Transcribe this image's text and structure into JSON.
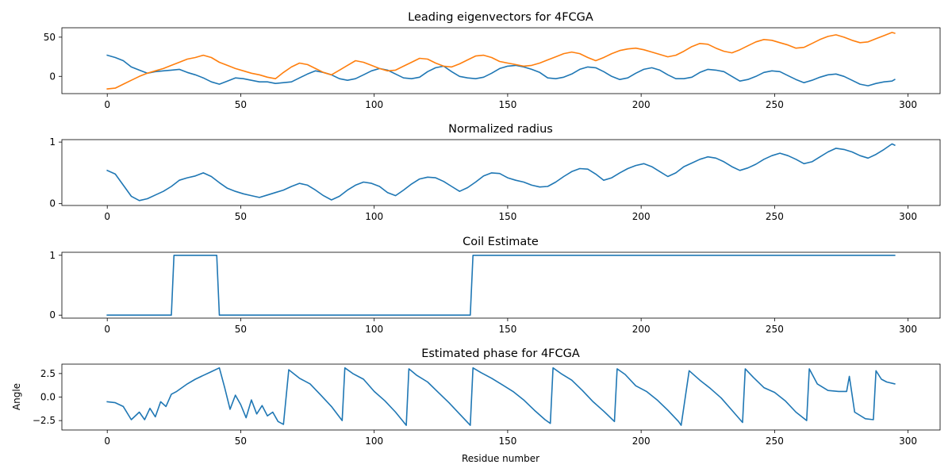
{
  "chart_data": [
    {
      "type": "line",
      "title": "Leading eigenvectors for 4FCGA",
      "xlabel": "",
      "ylabel": "",
      "xlim": [
        -17,
        312
      ],
      "ylim": [
        -22,
        62
      ],
      "xticks": [
        0,
        50,
        100,
        150,
        200,
        250,
        300
      ],
      "xtick_labels": [
        "0",
        "50",
        "100",
        "150",
        "200",
        "250",
        "300"
      ],
      "yticks": [
        0,
        50
      ],
      "ytick_labels": [
        "0",
        "50"
      ],
      "grid": false,
      "series": [
        {
          "color": "#1f77b4",
          "x": [
            0,
            3,
            6,
            9,
            12,
            15,
            18,
            21,
            24,
            27,
            30,
            33,
            36,
            39,
            42,
            45,
            48,
            51,
            54,
            57,
            60,
            63,
            66,
            69,
            72,
            75,
            78,
            81,
            84,
            87,
            90,
            93,
            96,
            99,
            102,
            105,
            108,
            111,
            114,
            117,
            120,
            123,
            126,
            129,
            132,
            135,
            138,
            141,
            144,
            147,
            150,
            153,
            156,
            159,
            162,
            165,
            168,
            171,
            174,
            177,
            180,
            183,
            186,
            189,
            192,
            195,
            198,
            201,
            204,
            207,
            210,
            213,
            216,
            219,
            222,
            225,
            228,
            231,
            234,
            237,
            240,
            243,
            246,
            249,
            252,
            255,
            258,
            261,
            264,
            267,
            270,
            273,
            276,
            279,
            282,
            285,
            288,
            291,
            294,
            295
          ],
          "y": [
            27,
            24,
            20,
            12,
            8,
            4,
            6,
            7,
            8,
            9,
            5,
            2,
            -2,
            -7,
            -10,
            -6,
            -2,
            -3,
            -5,
            -7,
            -7,
            -9,
            -8,
            -7,
            -2,
            3,
            7,
            5,
            2,
            -3,
            -5,
            -3,
            2,
            7,
            10,
            8,
            3,
            -2,
            -3,
            -1,
            6,
            11,
            13,
            6,
            0,
            -2,
            -3,
            -1,
            4,
            10,
            13,
            14,
            12,
            9,
            5,
            -2,
            -3,
            -1,
            3,
            9,
            12,
            11,
            6,
            0,
            -4,
            -2,
            4,
            9,
            11,
            8,
            2,
            -3,
            -3,
            -1,
            5,
            9,
            8,
            6,
            0,
            -6,
            -4,
            0,
            5,
            7,
            6,
            1,
            -4,
            -8,
            -5,
            -1,
            2,
            3,
            0,
            -5,
            -10,
            -12,
            -9,
            -7,
            -6,
            -4
          ]
        },
        {
          "color": "#ff7f0e",
          "x": [
            0,
            3,
            6,
            9,
            12,
            15,
            18,
            21,
            24,
            27,
            30,
            33,
            36,
            39,
            42,
            45,
            48,
            51,
            54,
            57,
            60,
            63,
            66,
            69,
            72,
            75,
            78,
            81,
            84,
            87,
            90,
            93,
            96,
            99,
            102,
            105,
            108,
            111,
            114,
            117,
            120,
            123,
            126,
            129,
            132,
            135,
            138,
            141,
            144,
            147,
            150,
            153,
            156,
            159,
            162,
            165,
            168,
            171,
            174,
            177,
            180,
            183,
            186,
            189,
            192,
            195,
            198,
            201,
            204,
            207,
            210,
            213,
            216,
            219,
            222,
            225,
            228,
            231,
            234,
            237,
            240,
            243,
            246,
            249,
            252,
            255,
            258,
            261,
            264,
            267,
            270,
            273,
            276,
            279,
            282,
            285,
            288,
            291,
            294,
            295
          ],
          "y": [
            -16,
            -15,
            -10,
            -5,
            0,
            4,
            7,
            10,
            14,
            18,
            22,
            24,
            27,
            24,
            18,
            14,
            10,
            7,
            4,
            2,
            -1,
            -3,
            5,
            12,
            17,
            15,
            10,
            5,
            2,
            8,
            14,
            20,
            18,
            14,
            10,
            7,
            8,
            13,
            18,
            23,
            22,
            17,
            13,
            12,
            16,
            21,
            26,
            27,
            24,
            19,
            17,
            15,
            13,
            14,
            17,
            21,
            25,
            29,
            31,
            29,
            24,
            20,
            24,
            29,
            33,
            35,
            36,
            34,
            31,
            28,
            25,
            27,
            32,
            38,
            42,
            41,
            36,
            32,
            30,
            34,
            39,
            44,
            47,
            46,
            43,
            40,
            36,
            37,
            42,
            47,
            51,
            53,
            50,
            46,
            43,
            44,
            48,
            52,
            56,
            55
          ]
        }
      ]
    },
    {
      "type": "line",
      "title": "Normalized radius",
      "xlabel": "",
      "ylabel": "",
      "xlim": [
        -17,
        312
      ],
      "ylim": [
        -0.03,
        1.04
      ],
      "xticks": [
        0,
        50,
        100,
        150,
        200,
        250,
        300
      ],
      "xtick_labels": [
        "0",
        "50",
        "100",
        "150",
        "200",
        "250",
        "300"
      ],
      "yticks": [
        0,
        1
      ],
      "ytick_labels": [
        "0",
        "1"
      ],
      "grid": false,
      "series": [
        {
          "color": "#1f77b4",
          "x": [
            0,
            3,
            6,
            9,
            12,
            15,
            18,
            21,
            24,
            27,
            30,
            33,
            36,
            39,
            42,
            45,
            48,
            51,
            54,
            57,
            60,
            63,
            66,
            69,
            72,
            75,
            78,
            81,
            84,
            87,
            90,
            93,
            96,
            99,
            102,
            105,
            108,
            111,
            114,
            117,
            120,
            123,
            126,
            129,
            132,
            135,
            138,
            141,
            144,
            147,
            150,
            153,
            156,
            159,
            162,
            165,
            168,
            171,
            174,
            177,
            180,
            183,
            186,
            189,
            192,
            195,
            198,
            201,
            204,
            207,
            210,
            213,
            216,
            219,
            222,
            225,
            228,
            231,
            234,
            237,
            240,
            243,
            246,
            249,
            252,
            255,
            258,
            261,
            264,
            267,
            270,
            273,
            276,
            279,
            282,
            285,
            288,
            291,
            294,
            295
          ],
          "y": [
            0.54,
            0.48,
            0.3,
            0.12,
            0.05,
            0.08,
            0.14,
            0.2,
            0.28,
            0.38,
            0.42,
            0.45,
            0.5,
            0.44,
            0.34,
            0.25,
            0.2,
            0.16,
            0.13,
            0.1,
            0.14,
            0.18,
            0.22,
            0.28,
            0.33,
            0.3,
            0.22,
            0.13,
            0.06,
            0.12,
            0.22,
            0.3,
            0.35,
            0.33,
            0.28,
            0.18,
            0.13,
            0.22,
            0.32,
            0.4,
            0.43,
            0.42,
            0.36,
            0.28,
            0.2,
            0.26,
            0.35,
            0.45,
            0.5,
            0.49,
            0.42,
            0.38,
            0.35,
            0.3,
            0.27,
            0.28,
            0.35,
            0.44,
            0.52,
            0.57,
            0.56,
            0.48,
            0.38,
            0.42,
            0.5,
            0.57,
            0.62,
            0.65,
            0.6,
            0.52,
            0.44,
            0.5,
            0.6,
            0.66,
            0.72,
            0.76,
            0.74,
            0.68,
            0.6,
            0.54,
            0.58,
            0.64,
            0.72,
            0.78,
            0.82,
            0.78,
            0.72,
            0.65,
            0.68,
            0.76,
            0.84,
            0.9,
            0.88,
            0.84,
            0.78,
            0.74,
            0.8,
            0.88,
            0.97,
            0.95
          ]
        }
      ]
    },
    {
      "type": "line",
      "title": "Coil Estimate",
      "xlabel": "",
      "ylabel": "",
      "xlim": [
        -17,
        312
      ],
      "ylim": [
        -0.05,
        1.05
      ],
      "xticks": [
        0,
        50,
        100,
        150,
        200,
        250,
        300
      ],
      "xtick_labels": [
        "0",
        "50",
        "100",
        "150",
        "200",
        "250",
        "300"
      ],
      "yticks": [
        0,
        1
      ],
      "ytick_labels": [
        "0",
        "1"
      ],
      "grid": false,
      "series": [
        {
          "color": "#1f77b4",
          "x": [
            0,
            24,
            25,
            41,
            42,
            136,
            137,
            295
          ],
          "y": [
            0,
            0,
            1,
            1,
            0,
            0,
            1,
            1
          ]
        }
      ]
    },
    {
      "type": "line",
      "title": "Estimated phase for 4FCGA",
      "xlabel": "Residue number",
      "ylabel": "Angle",
      "xlim": [
        -17,
        312
      ],
      "ylim": [
        -3.5,
        3.5
      ],
      "xticks": [
        0,
        50,
        100,
        150,
        200,
        250,
        300
      ],
      "xtick_labels": [
        "0",
        "50",
        "100",
        "150",
        "200",
        "250",
        "300"
      ],
      "yticks": [
        -2.5,
        0,
        2.5
      ],
      "ytick_labels": [
        "−2.5",
        "0.0",
        "2.5"
      ],
      "grid": false,
      "series": [
        {
          "color": "#1f77b4",
          "x": [
            0,
            3,
            6,
            9,
            12,
            14,
            16,
            18,
            20,
            22,
            24,
            26,
            28,
            30,
            33,
            36,
            39,
            42,
            44,
            46,
            48,
            50,
            52,
            54,
            56,
            58,
            60,
            62,
            64,
            66,
            68,
            72,
            76,
            80,
            84,
            88,
            89,
            92,
            96,
            100,
            104,
            108,
            112,
            113,
            116,
            120,
            124,
            128,
            132,
            136,
            137,
            140,
            144,
            148,
            152,
            156,
            160,
            164,
            166,
            167,
            170,
            174,
            178,
            182,
            186,
            190,
            191,
            194,
            198,
            202,
            206,
            210,
            214,
            215,
            218,
            222,
            226,
            230,
            234,
            238,
            239,
            242,
            246,
            250,
            254,
            258,
            262,
            263,
            266,
            270,
            274,
            277,
            278,
            280,
            284,
            287,
            288,
            290,
            292,
            295
          ],
          "y": [
            -0.5,
            -0.6,
            -1.0,
            -2.4,
            -1.6,
            -2.4,
            -1.2,
            -2.1,
            -0.5,
            -1.0,
            0.3,
            0.6,
            1.0,
            1.4,
            1.9,
            2.3,
            2.7,
            3.1,
            1.0,
            -1.3,
            0.2,
            -0.8,
            -2.2,
            -0.3,
            -1.8,
            -0.9,
            -2.0,
            -1.6,
            -2.6,
            -2.9,
            2.9,
            2.0,
            1.4,
            0.2,
            -1.0,
            -2.5,
            3.1,
            2.5,
            1.9,
            0.6,
            -0.4,
            -1.6,
            -3.0,
            3.0,
            2.3,
            1.6,
            0.5,
            -0.6,
            -1.8,
            -3.0,
            3.1,
            2.6,
            2.0,
            1.3,
            0.6,
            -0.3,
            -1.4,
            -2.4,
            -2.8,
            3.1,
            2.5,
            1.8,
            0.7,
            -0.5,
            -1.5,
            -2.6,
            3.0,
            2.4,
            1.2,
            0.6,
            -0.3,
            -1.4,
            -2.6,
            -3.0,
            2.8,
            1.8,
            0.9,
            -0.1,
            -1.4,
            -2.7,
            3.0,
            2.1,
            1.0,
            0.5,
            -0.4,
            -1.6,
            -2.5,
            3.0,
            1.4,
            0.7,
            0.6,
            0.6,
            2.2,
            -1.6,
            -2.3,
            -2.4,
            2.8,
            1.9,
            1.6,
            1.4
          ]
        }
      ]
    }
  ]
}
